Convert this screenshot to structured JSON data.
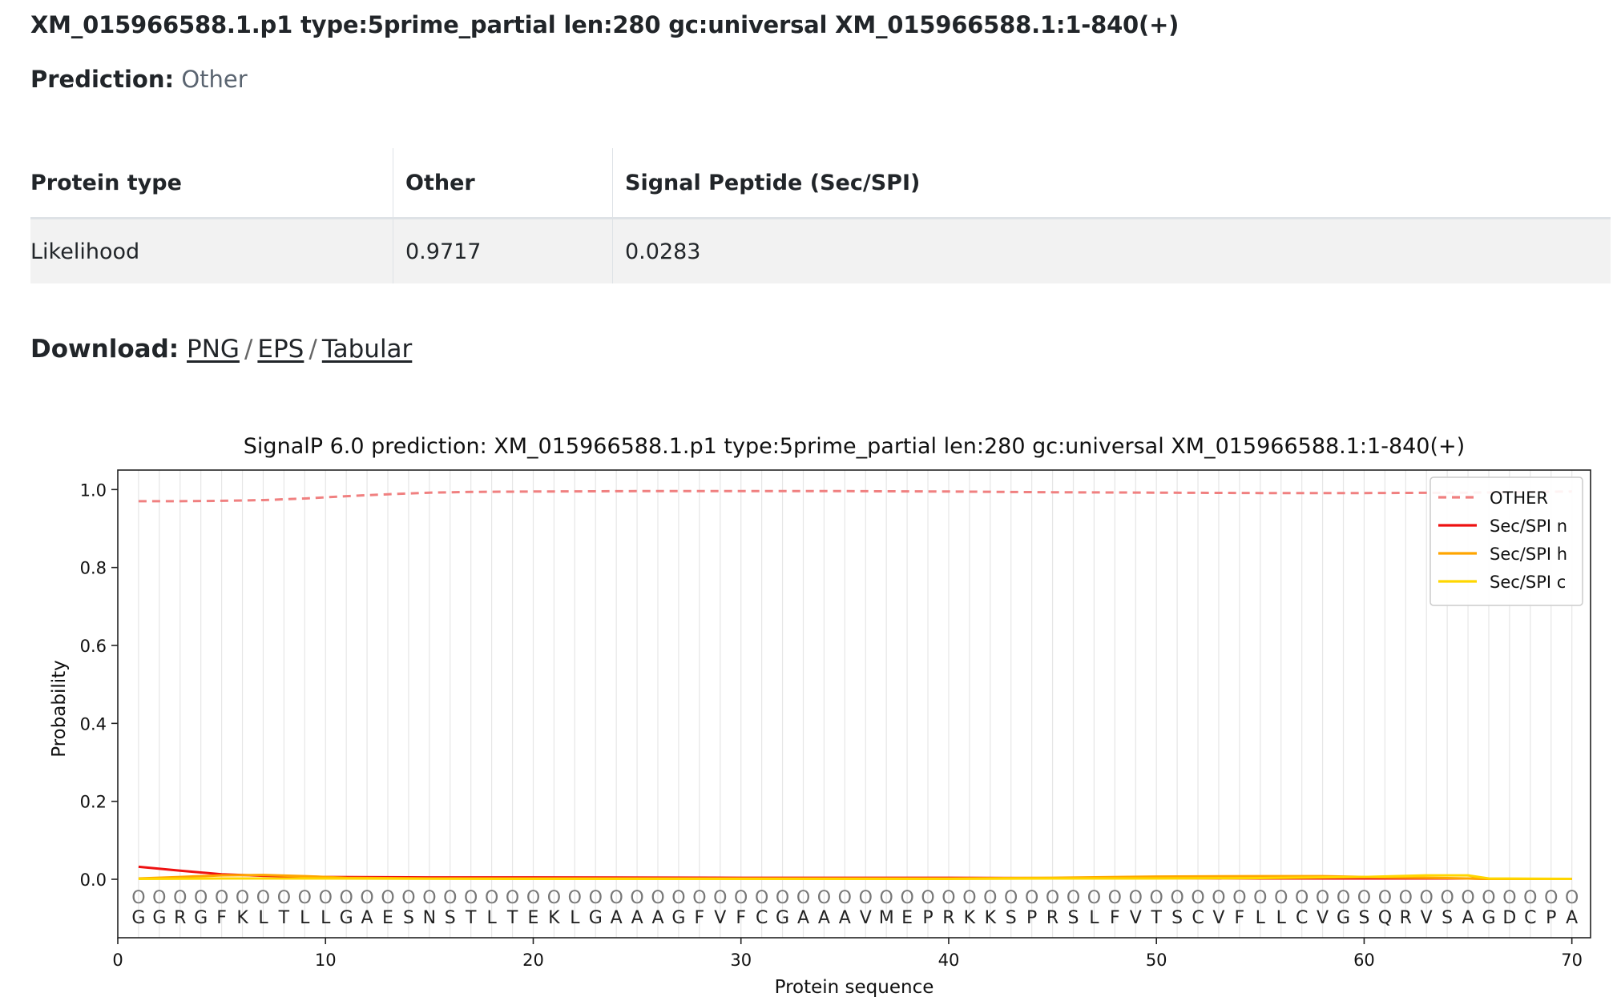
{
  "header": {
    "title": "XM_015966588.1.p1 type:5prime_partial len:280 gc:universal XM_015966588.1:1-840(+)",
    "prediction_label": "Prediction:",
    "prediction_value": "Other"
  },
  "table": {
    "headers": [
      "Protein type",
      "Other",
      "Signal Peptide (Sec/SPI)"
    ],
    "row": [
      "Likelihood",
      "0.9717",
      "0.0283"
    ]
  },
  "download": {
    "label": "Download:",
    "links": [
      "PNG",
      "EPS",
      "Tabular"
    ],
    "separator": "/"
  },
  "chart_data": {
    "type": "line",
    "title": "SignalP 6.0 prediction: XM_015966588.1.p1 type:5prime_partial len:280 gc:universal XM_015966588.1:1-840(+)",
    "xlabel": "Protein sequence",
    "ylabel": "Probability",
    "xlim": [
      0,
      70.9
    ],
    "ylim": [
      -0.15,
      1.05
    ],
    "xticks": [
      0,
      10,
      20,
      30,
      40,
      50,
      60,
      70
    ],
    "yticks": [
      0.0,
      0.2,
      0.4,
      0.6,
      0.8,
      1.0
    ],
    "ytick_labels": [
      "0.0",
      "0.2",
      "0.4",
      "0.6",
      "0.8",
      "1.0"
    ],
    "grid": "vertical lines at each residue",
    "legend_position": "top-right",
    "sequence": "GGRGFKLTLLGAESNSTLTEKLGAAAGFVFCGAAAVMEPRKKSPRSLFVTSCVFLLCVGSQRVSAGDCPA",
    "label_row_char": "O",
    "label_row_y": -0.045,
    "sequence_row_y": -0.097,
    "series": [
      {
        "name": "OTHER",
        "color": "#f08080",
        "style": "dashed",
        "x": [
          1,
          3,
          5,
          7,
          9,
          11,
          13,
          15,
          17,
          20,
          25,
          30,
          35,
          40,
          45,
          50,
          55,
          60,
          65,
          70
        ],
        "values": [
          0.97,
          0.97,
          0.971,
          0.973,
          0.977,
          0.983,
          0.988,
          0.992,
          0.994,
          0.995,
          0.996,
          0.996,
          0.996,
          0.995,
          0.993,
          0.992,
          0.991,
          0.991,
          0.992,
          0.995
        ]
      },
      {
        "name": "Sec/SPI n",
        "color": "#ee1111",
        "style": "solid",
        "x": [
          1,
          3,
          5,
          7,
          10,
          15,
          20,
          30,
          40,
          45,
          50,
          55,
          60,
          65,
          66,
          70
        ],
        "values": [
          0.032,
          0.022,
          0.013,
          0.009,
          0.006,
          0.005,
          0.005,
          0.004,
          0.004,
          0.003,
          0.003,
          0.002,
          0.002,
          0.002,
          0.001,
          0.001
        ]
      },
      {
        "name": "Sec/SPI h",
        "color": "#ffa500",
        "style": "solid",
        "x": [
          1,
          3,
          5,
          7,
          9,
          11,
          15,
          20,
          30,
          40,
          45,
          50,
          55,
          58,
          61,
          64,
          65,
          66,
          70
        ],
        "values": [
          0.002,
          0.006,
          0.01,
          0.011,
          0.008,
          0.004,
          0.002,
          0.002,
          0.002,
          0.002,
          0.004,
          0.007,
          0.008,
          0.008,
          0.005,
          0.003,
          0.002,
          0.001,
          0.001
        ]
      },
      {
        "name": "Sec/SPI c",
        "color": "#ffd700",
        "style": "solid",
        "x": [
          1,
          5,
          10,
          20,
          30,
          40,
          45,
          50,
          55,
          60,
          63,
          65,
          66,
          70
        ],
        "values": [
          0.001,
          0.002,
          0.002,
          0.001,
          0.001,
          0.001,
          0.002,
          0.002,
          0.003,
          0.006,
          0.01,
          0.01,
          0.002,
          0.001
        ]
      }
    ]
  }
}
